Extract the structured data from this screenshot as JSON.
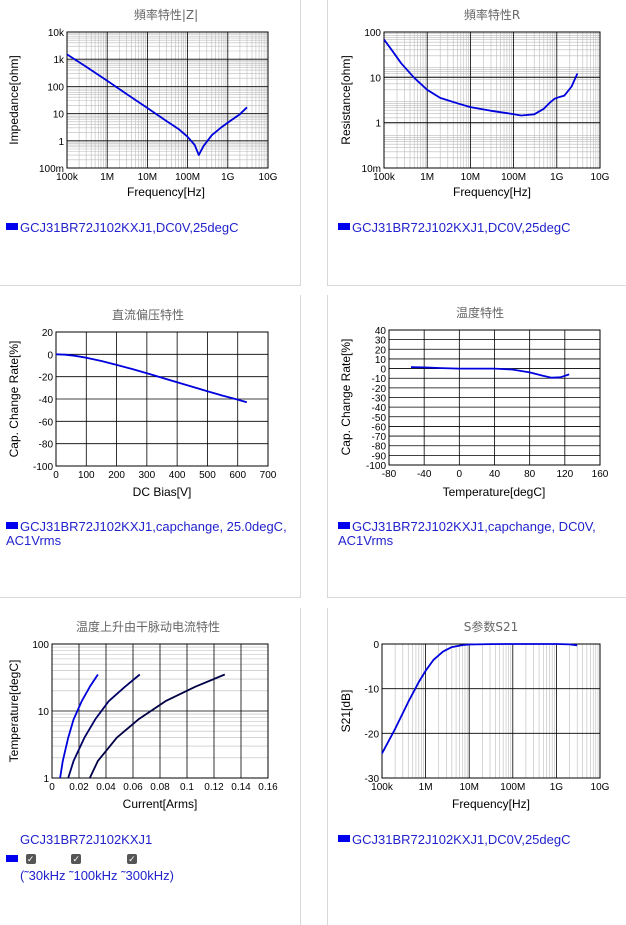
{
  "colors": {
    "curve": "#0000dd",
    "curve_dark": "#000044",
    "grid": "#000000",
    "minor": "#bbbbbb"
  },
  "chart_data": [
    {
      "id": "impedance",
      "type": "line",
      "title": "頻率特性|Z|",
      "xlabel": "Frequency[Hz]",
      "ylabel": "Impedance[ohm]",
      "xscale": "log",
      "yscale": "log",
      "xlim": [
        100000,
        10000000000
      ],
      "ylim": [
        0.1,
        10000
      ],
      "xticks": [
        "100k",
        "1M",
        "10M",
        "100M",
        "1G",
        "10G"
      ],
      "yticks": [
        "100m",
        "1",
        "10",
        "100",
        "1k",
        "10k"
      ],
      "grid": true,
      "series": [
        {
          "x": [
            100000,
            300000,
            1000000,
            3000000,
            10000000,
            30000000,
            60000000,
            100000000,
            150000000,
            190000000,
            250000000,
            400000000,
            700000000,
            1200000000,
            2000000000,
            3000000000
          ],
          "y": [
            1500,
            530,
            160,
            53,
            16,
            5.3,
            2.7,
            1.4,
            0.7,
            0.3,
            0.65,
            1.6,
            3.2,
            5.6,
            9.5,
            17
          ]
        }
      ],
      "legend": "GCJ31BR72J102KXJ1,DC0V,25degC"
    },
    {
      "id": "resistance",
      "type": "line",
      "title": "頻率特性R",
      "xlabel": "Frequency[Hz]",
      "ylabel": "Resistance[ohm]",
      "xscale": "log",
      "yscale": "log",
      "xlim": [
        100000,
        10000000000
      ],
      "ylim": [
        0.01,
        100
      ],
      "xticks": [
        "100k",
        "1M",
        "10M",
        "100M",
        "1G",
        "10G"
      ],
      "yticks": [
        "10m",
        "1",
        "10",
        "100"
      ],
      "grid": true,
      "series": [
        {
          "x": [
            100000,
            150000,
            250000,
            500000,
            1000000,
            2000000,
            5000000,
            10000000,
            30000000,
            80000000,
            150000000,
            300000000,
            500000000,
            700000000,
            900000000,
            1100000000,
            1500000000,
            2200000000,
            3000000000
          ],
          "y": [
            60,
            30,
            12,
            4.5,
            2,
            1.15,
            0.8,
            0.62,
            0.48,
            0.4,
            0.35,
            0.38,
            0.55,
            0.85,
            1.1,
            1.2,
            1.35,
            2.5,
            6
          ]
        }
      ],
      "legend": "GCJ31BR72J102KXJ1,DC0V,25degC"
    },
    {
      "id": "dcbias",
      "type": "line",
      "title": "直流偏压特性",
      "xlabel": "DC Bias[V]",
      "ylabel": "Cap. Change Rate[%]",
      "xlim": [
        0,
        700
      ],
      "ylim": [
        -100,
        20
      ],
      "xticks": [
        "0",
        "100",
        "200",
        "300",
        "400",
        "500",
        "600",
        "700"
      ],
      "yticks": [
        "-100",
        "-80",
        "-60",
        "-40",
        "-20",
        "0",
        "20"
      ],
      "grid": true,
      "series": [
        {
          "x": [
            0,
            30,
            60,
            100,
            150,
            200,
            250,
            300,
            350,
            400,
            450,
            500,
            550,
            600,
            630
          ],
          "y": [
            0,
            -0.3,
            -1.2,
            -3,
            -6,
            -9.5,
            -13,
            -17,
            -21,
            -25,
            -29,
            -33,
            -37,
            -40.5,
            -43
          ]
        }
      ],
      "legend": "GCJ31BR72J102KXJ1,capchange, 25.0degC, AC1Vrms"
    },
    {
      "id": "temperature",
      "type": "line",
      "title": "温度特性",
      "xlabel": "Temperature[degC]",
      "ylabel": "Cap. Change Rate[%]",
      "xlim": [
        -80,
        160
      ],
      "ylim": [
        -100,
        40
      ],
      "xticks": [
        "-80",
        "-40",
        "0",
        "40",
        "80",
        "120",
        "160"
      ],
      "yticks": [
        "-100",
        "-90",
        "-80",
        "-70",
        "-60",
        "-50",
        "-40",
        "-30",
        "-20",
        "-10",
        "0",
        "10",
        "20",
        "30",
        "40"
      ],
      "grid": true,
      "series": [
        {
          "x": [
            -55,
            -40,
            -20,
            0,
            20,
            40,
            60,
            80,
            95,
            105,
            115,
            125
          ],
          "y": [
            1.5,
            1.2,
            0.5,
            0,
            0,
            0,
            -1,
            -4,
            -7.5,
            -9.5,
            -9,
            -6
          ]
        }
      ],
      "legend": "GCJ31BR72J102KXJ1,capchange, DC0V, AC1Vrms"
    },
    {
      "id": "temprise",
      "type": "line",
      "title": "温度上升由干脉动电流特性",
      "xlabel": "Current[Arms]",
      "ylabel": "Temperature[degC]",
      "yscale": "log",
      "xlim": [
        0,
        0.16
      ],
      "ylim": [
        1,
        100
      ],
      "xticks": [
        "0",
        "0.02",
        "0.04",
        "0.06",
        "0.08",
        "0.1",
        "0.12",
        "0.14",
        "0.16"
      ],
      "yticks": [
        "1",
        "10",
        "100"
      ],
      "grid": true,
      "series": [
        {
          "x": [
            0.006,
            0.008,
            0.012,
            0.016,
            0.022,
            0.028,
            0.034
          ],
          "y": [
            1,
            1.8,
            4,
            7.5,
            14,
            23,
            35
          ]
        },
        {
          "x": [
            0.012,
            0.016,
            0.024,
            0.032,
            0.042,
            0.054,
            0.065
          ],
          "y": [
            1,
            1.8,
            4,
            7.5,
            14,
            23,
            35
          ]
        },
        {
          "x": [
            0.028,
            0.034,
            0.048,
            0.064,
            0.084,
            0.106,
            0.128
          ],
          "y": [
            1,
            1.8,
            4,
            7.5,
            14,
            23,
            35
          ]
        }
      ],
      "legend": "GCJ31BR72J102KXJ1",
      "checks": [
        "(˜30kHz",
        "˜100kHz",
        "˜300kHz)"
      ]
    },
    {
      "id": "s21",
      "type": "line",
      "title": "S参数S21",
      "xlabel": "Frequency[Hz]",
      "ylabel": "S21[dB]",
      "xscale": "log",
      "xlim": [
        100000,
        10000000000
      ],
      "ylim": [
        -30,
        0
      ],
      "xticks": [
        "100k",
        "1M",
        "10M",
        "100M",
        "1G",
        "10G"
      ],
      "yticks": [
        "-30",
        "-20",
        "-10",
        "0"
      ],
      "grid": true,
      "series": [
        {
          "x": [
            100000,
            200000,
            400000,
            700000,
            1000000,
            1500000,
            2500000,
            4000000,
            7000000,
            10000000,
            30000000,
            100000000,
            1000000000,
            2000000000,
            3000000000
          ],
          "y": [
            -24.5,
            -19,
            -13,
            -8.5,
            -6,
            -3.6,
            -1.7,
            -0.7,
            -0.25,
            -0.12,
            -0.03,
            0,
            0,
            -0.1,
            -0.3
          ]
        }
      ],
      "legend": "GCJ31BR72J102KXJ1,DC0V,25degC"
    }
  ]
}
